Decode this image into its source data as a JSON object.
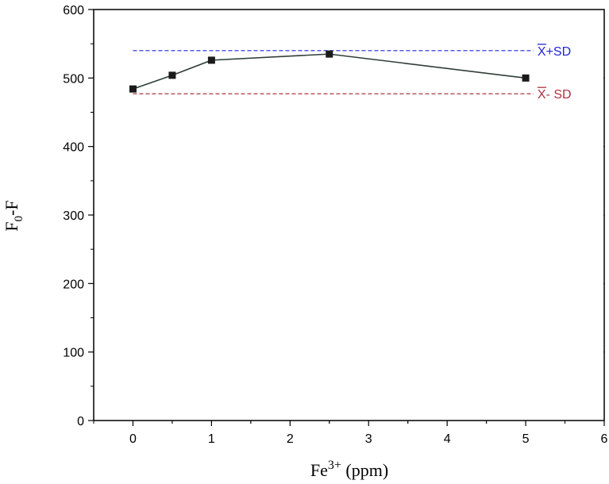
{
  "chart_data": {
    "type": "line",
    "xlabel": {
      "base": "Fe",
      "sup": "3+",
      "rest": " (ppm)"
    },
    "ylabel": {
      "base": "F",
      "sub": "0",
      "rest": "-F"
    },
    "xlim": [
      -0.5,
      6
    ],
    "ylim": [
      0,
      600
    ],
    "xticks": [
      "0",
      "1",
      "2",
      "3",
      "4",
      "5",
      "6"
    ],
    "yticks": [
      "0",
      "100",
      "200",
      "300",
      "400",
      "500",
      "600"
    ],
    "grid": false,
    "series": [
      {
        "x": [
          0,
          0.5,
          1,
          2.5,
          5
        ],
        "y": [
          484,
          504,
          526,
          535,
          500
        ],
        "color": "#1a1a1a",
        "line_color": "#2e3e35",
        "marker": "square"
      }
    ],
    "reference_lines": [
      {
        "y": 540,
        "label_bar": "X",
        "label_rest": "+SD",
        "color": "#2222dd",
        "label_color": "#2222dd"
      },
      {
        "y": 477,
        "label_bar": "X",
        "label_rest": "- SD",
        "color": "#a0202a",
        "label_color": "#b03040"
      }
    ]
  }
}
